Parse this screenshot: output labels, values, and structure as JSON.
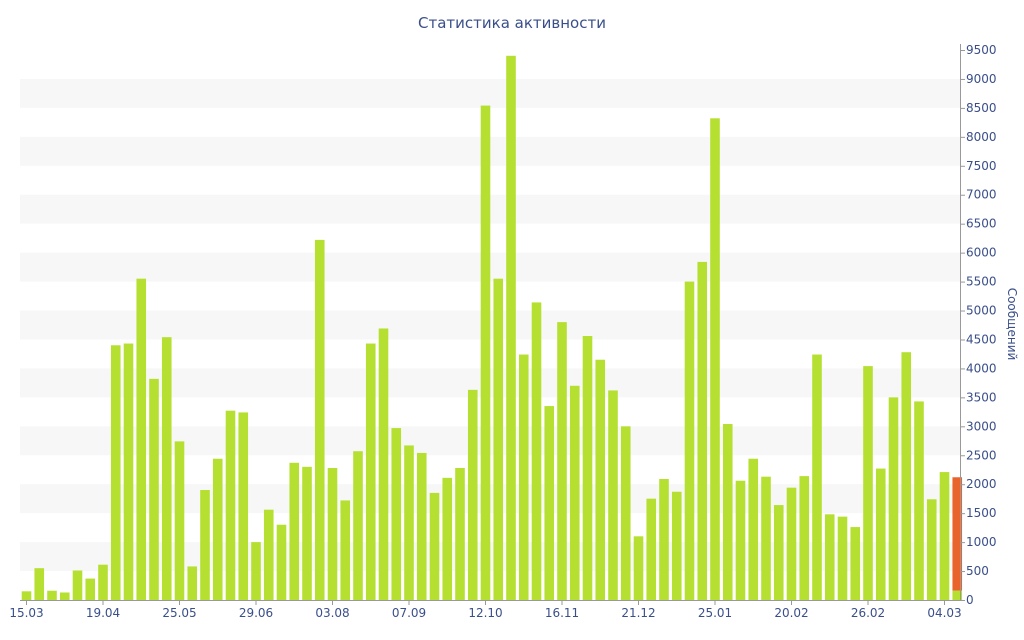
{
  "chart_data": {
    "type": "bar",
    "title": "Статистика активности",
    "ylabel": "Сообщений",
    "xlabel": "",
    "ylim": [
      0,
      9500
    ],
    "y_ticks": [
      0,
      500,
      1000,
      1500,
      2000,
      2500,
      3000,
      3500,
      4000,
      4500,
      5000,
      5500,
      6000,
      6500,
      7000,
      7500,
      8000,
      8500,
      9000,
      9500
    ],
    "x_tick_labels": [
      "15.03",
      "19.04",
      "25.05",
      "29.06",
      "03.08",
      "07.09",
      "12.10",
      "16.11",
      "21.12",
      "25.01",
      "20.02",
      "26.02",
      "04.03"
    ],
    "grid": "horizontal alternating bands",
    "y_axis_position": "right",
    "colors": {
      "bar": "#b5e032",
      "highlight": "#e8642c",
      "band": "#f7f7f7",
      "text": "#3a4f8a",
      "axis": "#999999"
    },
    "series": [
      {
        "values": [
          150,
          550,
          160,
          130,
          510,
          370,
          610,
          4400,
          4430,
          5550,
          3820,
          4540,
          2740,
          580,
          1900,
          2440,
          3270,
          3240,
          1000,
          1560,
          1300,
          2370,
          2300,
          6220,
          2280,
          1720,
          2570,
          4430,
          4690,
          2970,
          2670,
          2540,
          1850,
          2110,
          2280,
          3630,
          8540,
          5550,
          9400,
          4240,
          5140,
          3350,
          4800,
          3700,
          4560,
          4150,
          3620,
          3000,
          1100,
          1750,
          2090,
          1870,
          5500,
          5840,
          8320,
          3040,
          2060,
          2440,
          2130,
          1640,
          1940,
          2140,
          4240,
          1480,
          1440,
          1260,
          4040,
          2270,
          3500,
          4280,
          3430,
          1740,
          2210,
          2120
        ]
      }
    ],
    "highlighted_bar_index": 73,
    "highlighted_bar_light_portion": 160
  }
}
